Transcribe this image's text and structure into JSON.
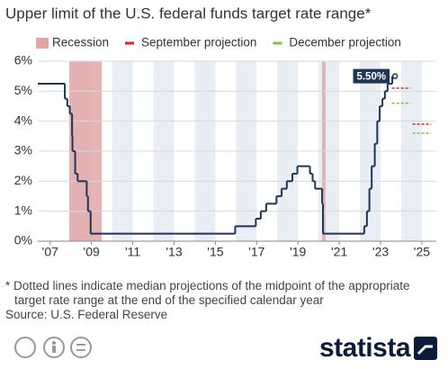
{
  "chart_data": {
    "type": "step",
    "title": "Upper limit of the U.S. federal funds target rate range*",
    "xlim": [
      2006.4,
      2025.7
    ],
    "xticks": [
      {
        "value": 2007,
        "label": "'07"
      },
      {
        "value": 2009,
        "label": "'09"
      },
      {
        "value": 2011,
        "label": "'11"
      },
      {
        "value": 2013,
        "label": "'13"
      },
      {
        "value": 2015,
        "label": "'15"
      },
      {
        "value": 2017,
        "label": "'17"
      },
      {
        "value": 2019,
        "label": "'19"
      },
      {
        "value": 2021,
        "label": "'21"
      },
      {
        "value": 2023,
        "label": "'23"
      },
      {
        "value": 2025,
        "label": "'25"
      }
    ],
    "ylim": [
      0,
      6
    ],
    "yticks": [
      {
        "value": 0,
        "label": "0%"
      },
      {
        "value": 1,
        "label": "1%"
      },
      {
        "value": 2,
        "label": "2%"
      },
      {
        "value": 3,
        "label": "3%"
      },
      {
        "value": 4,
        "label": "4%"
      },
      {
        "value": 5,
        "label": "5%"
      },
      {
        "value": 6,
        "label": "6%"
      }
    ],
    "grid": true,
    "series": [
      {
        "color": "#1d3557",
        "x": [
          2006.4,
          2007.71,
          2007.83,
          2007.95,
          2008.06,
          2008.08,
          2008.21,
          2008.33,
          2008.77,
          2008.83,
          2008.96,
          2015.96,
          2016.96,
          2017.2,
          2017.46,
          2017.96,
          2018.21,
          2018.46,
          2018.73,
          2018.97,
          2019.58,
          2019.71,
          2019.83,
          2020.17,
          2020.21,
          2022.21,
          2022.34,
          2022.46,
          2022.57,
          2022.72,
          2022.84,
          2022.96,
          2023.09,
          2023.21,
          2023.34,
          2023.57,
          2023.7
        ],
        "values": [
          5.25,
          4.75,
          4.5,
          4.25,
          3.5,
          3.0,
          2.25,
          2.0,
          1.5,
          1.0,
          0.25,
          0.5,
          0.75,
          1.0,
          1.25,
          1.5,
          1.75,
          2.0,
          2.25,
          2.5,
          2.25,
          2.0,
          1.75,
          1.25,
          0.25,
          0.5,
          1.0,
          1.75,
          2.5,
          3.25,
          4.0,
          4.5,
          4.75,
          5.0,
          5.25,
          5.5,
          5.5
        ]
      }
    ],
    "annotation": {
      "value": 5.5,
      "label": "5.50%"
    },
    "recessions": {
      "name": "Recession",
      "color": "#e3a6a6",
      "ranges": [
        [
          2007.92,
          2009.5
        ],
        [
          2020.17,
          2020.33
        ]
      ]
    },
    "projections": [
      {
        "name": "September projection",
        "color": "#d62828",
        "x": [
          2024,
          2025
        ],
        "values": [
          5.1,
          3.9
        ]
      },
      {
        "name": "December projection",
        "color": "#7cc242",
        "x": [
          2024,
          2025
        ],
        "values": [
          4.6,
          3.6
        ]
      }
    ],
    "footnote": "* Dotted lines indicate median projections of the midpoint of the appropriate target rate range at the end of the specified calendar year",
    "source": "Source: U.S. Federal Reserve",
    "brand": "statista"
  }
}
